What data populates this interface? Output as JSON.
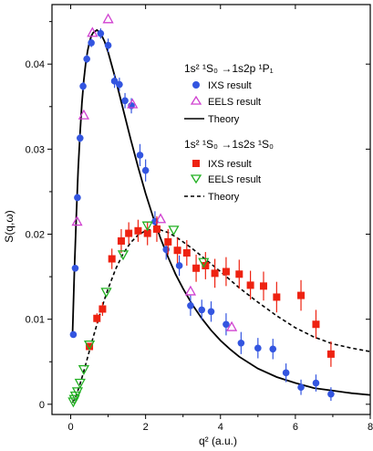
{
  "chart_data": {
    "type": "scatter",
    "xlabel": "q² (a.u.)",
    "ylabel": "S(q,ω)",
    "xlim": [
      -0.5,
      8.0
    ],
    "ylim": [
      -0.0012,
      0.047
    ],
    "xticks": [
      0,
      2,
      4,
      6,
      8
    ],
    "yticks": [
      0,
      0.01,
      0.02,
      0.03,
      0.04
    ],
    "ytick_labels": [
      "0",
      "0.01",
      "0.02",
      "0.03",
      "0.04"
    ],
    "grid": false,
    "legend_groups": [
      {
        "title": "1s² ¹S₀ →1s2p ¹P₁",
        "entries": [
          {
            "label": "IXS result",
            "symbol": "filled-circle",
            "color": "#3355e0"
          },
          {
            "label": "EELS result",
            "symbol": "open-triangle-up",
            "color": "#d040d0"
          },
          {
            "label": "Theory",
            "symbol": "solid-line",
            "color": "#000000"
          }
        ]
      },
      {
        "title": "1s² ¹S₀ →1s2s ¹S₀",
        "entries": [
          {
            "label": "IXS result",
            "symbol": "filled-square",
            "color": "#ee2211"
          },
          {
            "label": "EELS result",
            "symbol": "open-triangle-down",
            "color": "#22b022"
          },
          {
            "label": "Theory",
            "symbol": "dashed-line",
            "color": "#000000"
          }
        ]
      }
    ],
    "series": [
      {
        "transition": "1s2p",
        "kind": "IXS",
        "color": "#3355e0",
        "points": [
          [
            0.07,
            0.0082,
            0.0003
          ],
          [
            0.12,
            0.016,
            0.0004
          ],
          [
            0.18,
            0.0243,
            0.0004
          ],
          [
            0.25,
            0.0313,
            0.0005
          ],
          [
            0.33,
            0.0374,
            0.0005
          ],
          [
            0.43,
            0.0406,
            0.0005
          ],
          [
            0.55,
            0.0425,
            0.0005
          ],
          [
            0.8,
            0.0436,
            0.0006
          ],
          [
            1.0,
            0.0422,
            0.0008
          ],
          [
            1.17,
            0.038,
            0.0008
          ],
          [
            1.3,
            0.0376,
            0.0008
          ],
          [
            1.45,
            0.0357,
            0.0009
          ],
          [
            1.62,
            0.0351,
            0.0009
          ],
          [
            1.85,
            0.0293,
            0.0013
          ],
          [
            2.0,
            0.0275,
            0.0013
          ],
          [
            2.25,
            0.0215,
            0.0012
          ],
          [
            2.55,
            0.0182,
            0.0012
          ],
          [
            2.9,
            0.0163,
            0.0012
          ],
          [
            3.2,
            0.0116,
            0.0012
          ],
          [
            3.5,
            0.0111,
            0.0012
          ],
          [
            3.75,
            0.0109,
            0.0012
          ],
          [
            4.15,
            0.0094,
            0.0013
          ],
          [
            4.55,
            0.0072,
            0.0013
          ],
          [
            5.0,
            0.0066,
            0.0012
          ],
          [
            5.4,
            0.0065,
            0.0012
          ],
          [
            5.75,
            0.0037,
            0.0011
          ],
          [
            6.15,
            0.002,
            0.0009
          ],
          [
            6.55,
            0.0025,
            0.001
          ],
          [
            6.95,
            0.0012,
            0.0008
          ]
        ]
      },
      {
        "transition": "1s2p",
        "kind": "EELS",
        "color": "#d040d0",
        "points": [
          [
            0.17,
            0.0215
          ],
          [
            0.35,
            0.034
          ],
          [
            0.58,
            0.0437
          ],
          [
            1.0,
            0.0453
          ],
          [
            1.65,
            0.0353
          ],
          [
            2.4,
            0.0218
          ],
          [
            3.2,
            0.0133
          ],
          [
            4.3,
            0.0091
          ]
        ]
      },
      {
        "transition": "1s2s",
        "kind": "IXS",
        "color": "#ee2211",
        "points": [
          [
            0.5,
            0.0068,
            0.0004
          ],
          [
            0.7,
            0.0101,
            0.0006
          ],
          [
            0.85,
            0.0112,
            0.0008
          ],
          [
            1.1,
            0.0171,
            0.0012
          ],
          [
            1.35,
            0.0192,
            0.0014
          ],
          [
            1.55,
            0.0201,
            0.0013
          ],
          [
            1.8,
            0.0204,
            0.0013
          ],
          [
            2.05,
            0.0201,
            0.0014
          ],
          [
            2.3,
            0.0206,
            0.0015
          ],
          [
            2.6,
            0.0191,
            0.0015
          ],
          [
            2.85,
            0.0181,
            0.0015
          ],
          [
            3.1,
            0.0178,
            0.0015
          ],
          [
            3.35,
            0.016,
            0.0016
          ],
          [
            3.6,
            0.0163,
            0.0016
          ],
          [
            3.85,
            0.0154,
            0.0017
          ],
          [
            4.15,
            0.0156,
            0.0017
          ],
          [
            4.5,
            0.0153,
            0.0017
          ],
          [
            4.8,
            0.014,
            0.0017
          ],
          [
            5.15,
            0.0139,
            0.0017
          ],
          [
            5.5,
            0.0126,
            0.0018
          ],
          [
            6.15,
            0.0128,
            0.0018
          ],
          [
            6.55,
            0.0094,
            0.0017
          ],
          [
            6.95,
            0.0059,
            0.0015
          ]
        ]
      },
      {
        "transition": "1s2s",
        "kind": "EELS",
        "color": "#22b022",
        "points": [
          [
            0.07,
            0.0003
          ],
          [
            0.1,
            0.0006
          ],
          [
            0.13,
            0.001
          ],
          [
            0.18,
            0.0015
          ],
          [
            0.25,
            0.0025
          ],
          [
            0.35,
            0.0041
          ],
          [
            0.5,
            0.007
          ],
          [
            0.95,
            0.0132
          ],
          [
            1.4,
            0.0176
          ],
          [
            2.05,
            0.021
          ],
          [
            2.75,
            0.0205
          ],
          [
            3.55,
            0.0167
          ]
        ]
      }
    ],
    "theory_1s2p": [
      [
        0.05,
        0.0085
      ],
      [
        0.1,
        0.0158
      ],
      [
        0.15,
        0.0222
      ],
      [
        0.2,
        0.0276
      ],
      [
        0.25,
        0.0319
      ],
      [
        0.3,
        0.0354
      ],
      [
        0.35,
        0.0381
      ],
      [
        0.4,
        0.0401
      ],
      [
        0.45,
        0.0415
      ],
      [
        0.5,
        0.0426
      ],
      [
        0.55,
        0.0433
      ],
      [
        0.6,
        0.0437
      ],
      [
        0.7,
        0.044
      ],
      [
        0.8,
        0.0436
      ],
      [
        0.9,
        0.0427
      ],
      [
        1.0,
        0.0414
      ],
      [
        1.2,
        0.0382
      ],
      [
        1.4,
        0.0347
      ],
      [
        1.6,
        0.0312
      ],
      [
        1.8,
        0.0279
      ],
      [
        2.0,
        0.0248
      ],
      [
        2.2,
        0.022
      ],
      [
        2.4,
        0.0195
      ],
      [
        2.6,
        0.0173
      ],
      [
        2.8,
        0.0153
      ],
      [
        3.0,
        0.0136
      ],
      [
        3.25,
        0.0117
      ],
      [
        3.5,
        0.0101
      ],
      [
        3.75,
        0.0087
      ],
      [
        4.0,
        0.0075
      ],
      [
        4.25,
        0.0065
      ],
      [
        4.5,
        0.0056
      ],
      [
        4.75,
        0.0049
      ],
      [
        5.0,
        0.0042
      ],
      [
        5.5,
        0.0032
      ],
      [
        6.0,
        0.0025
      ],
      [
        6.5,
        0.0019
      ],
      [
        7.0,
        0.0016
      ],
      [
        7.5,
        0.0013
      ],
      [
        8.0,
        0.0011
      ]
    ],
    "theory_1s2s": [
      [
        0.05,
        0.0002
      ],
      [
        0.1,
        0.0006
      ],
      [
        0.15,
        0.0011
      ],
      [
        0.2,
        0.0017
      ],
      [
        0.25,
        0.0024
      ],
      [
        0.3,
        0.0031
      ],
      [
        0.35,
        0.0039
      ],
      [
        0.4,
        0.0047
      ],
      [
        0.5,
        0.0063
      ],
      [
        0.6,
        0.0079
      ],
      [
        0.7,
        0.0094
      ],
      [
        0.8,
        0.0109
      ],
      [
        0.9,
        0.0123
      ],
      [
        1.0,
        0.0136
      ],
      [
        1.2,
        0.0159
      ],
      [
        1.4,
        0.0177
      ],
      [
        1.6,
        0.019
      ],
      [
        1.8,
        0.0199
      ],
      [
        2.0,
        0.0204
      ],
      [
        2.2,
        0.0206
      ],
      [
        2.4,
        0.0205
      ],
      [
        2.6,
        0.0202
      ],
      [
        2.8,
        0.0197
      ],
      [
        3.0,
        0.0191
      ],
      [
        3.25,
        0.0183
      ],
      [
        3.5,
        0.0174
      ],
      [
        3.75,
        0.0165
      ],
      [
        4.0,
        0.0156
      ],
      [
        4.5,
        0.0137
      ],
      [
        5.0,
        0.012
      ],
      [
        5.5,
        0.0104
      ],
      [
        6.0,
        0.009
      ],
      [
        6.5,
        0.0079
      ],
      [
        7.0,
        0.0071
      ],
      [
        7.5,
        0.0066
      ],
      [
        8.0,
        0.0062
      ]
    ]
  }
}
